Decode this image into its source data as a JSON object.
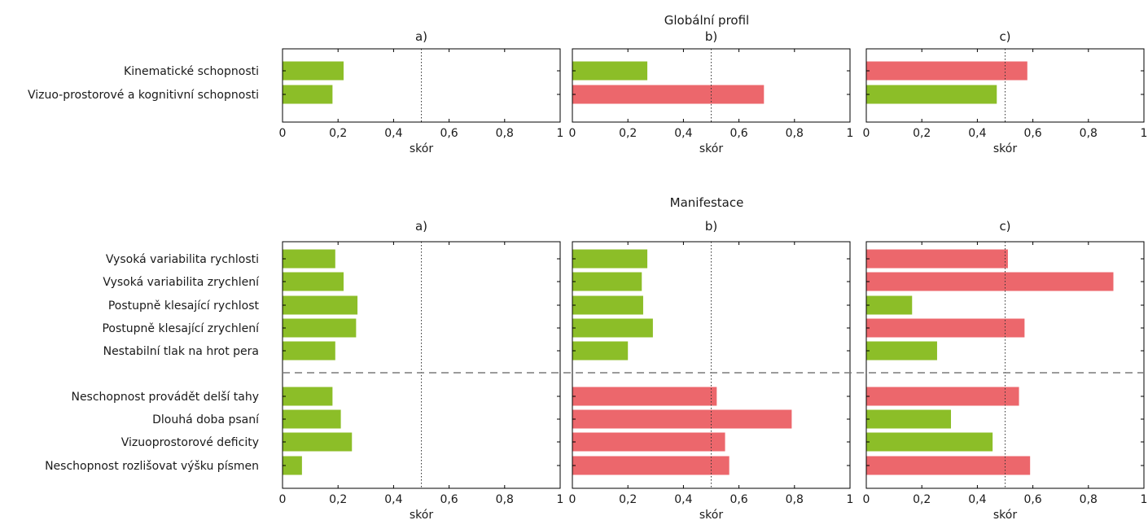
{
  "colors": {
    "ok": "#8cbe28",
    "bad": "#ec676c",
    "axis": "#000000",
    "ref": "#333333",
    "divider": "#7a7a7a"
  },
  "chart_data": [
    {
      "type": "bar",
      "orientation": "horizontal",
      "title": "Globální profil",
      "xlabel": "skór",
      "xlim": [
        0,
        1
      ],
      "xticks": [
        "0",
        "0,2",
        "0,4",
        "0,6",
        "0,8",
        "1"
      ],
      "reference_line": 0.5,
      "categories": [
        "Kinematické schopnosti",
        "Vizuo-prostorové a kognitivní schopnosti"
      ],
      "panels": [
        {
          "label": "a)",
          "values": [
            0.22,
            0.18
          ],
          "status": [
            "ok",
            "ok"
          ]
        },
        {
          "label": "b)",
          "values": [
            0.27,
            0.69
          ],
          "status": [
            "ok",
            "bad"
          ]
        },
        {
          "label": "c)",
          "values": [
            0.58,
            0.47
          ],
          "status": [
            "bad",
            "ok"
          ]
        }
      ]
    },
    {
      "type": "bar",
      "orientation": "horizontal",
      "title": "Manifestace",
      "xlabel": "skór",
      "xlim": [
        0,
        1
      ],
      "xticks": [
        "0",
        "0,2",
        "0,4",
        "0,6",
        "0,8",
        "1"
      ],
      "reference_line": 0.5,
      "group_divider_after": 4,
      "categories": [
        "Vysoká variabilita rychlosti",
        "Vysoká variabilita zrychlení",
        "Postupně klesající rychlost",
        "Postupně klesající zrychlení",
        "Nestabilní tlak na hrot pera",
        "Neschopnost provádět delší tahy",
        "Dlouhá doba psaní",
        "Vizuoprostorové deficity",
        "Neschopnost rozlišovat výšku písmen"
      ],
      "panels": [
        {
          "label": "a)",
          "values": [
            0.19,
            0.22,
            0.27,
            0.265,
            0.19,
            0.18,
            0.21,
            0.25,
            0.07
          ],
          "status": [
            "ok",
            "ok",
            "ok",
            "ok",
            "ok",
            "ok",
            "ok",
            "ok",
            "ok"
          ]
        },
        {
          "label": "b)",
          "values": [
            0.27,
            0.25,
            0.255,
            0.29,
            0.2,
            0.52,
            0.79,
            0.55,
            0.565
          ],
          "status": [
            "ok",
            "ok",
            "ok",
            "ok",
            "ok",
            "bad",
            "bad",
            "bad",
            "bad"
          ]
        },
        {
          "label": "c)",
          "values": [
            0.51,
            0.89,
            0.165,
            0.57,
            0.255,
            0.55,
            0.305,
            0.455,
            0.59
          ],
          "status": [
            "bad",
            "bad",
            "ok",
            "bad",
            "ok",
            "bad",
            "ok",
            "ok",
            "bad"
          ]
        }
      ]
    }
  ]
}
